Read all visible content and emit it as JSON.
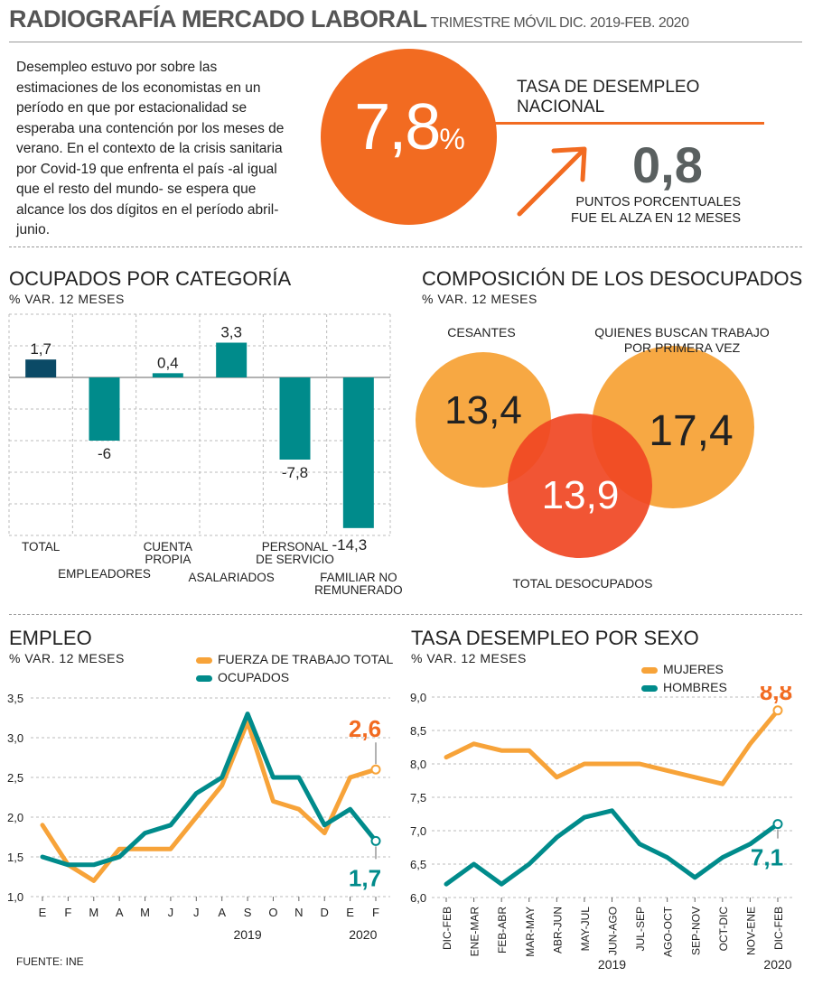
{
  "header": {
    "title": "RADIOGRAFÍA MERCADO LABORAL",
    "subtitle": "TRIMESTRE MÓVIL DIC. 2019-FEB. 2020"
  },
  "intro": {
    "text": "Desempleo estuvo por sobre las estimaciones de los economistas en un período en que  por estacionalidad se esperaba una contención por los meses de verano. En el contexto de la crisis sanitaria por Covid-19 que enfrenta el país -al igual que el resto del mundo- se espera que alcance los dos dígitos en el período abril-junio."
  },
  "rate": {
    "value": "7,8",
    "unit": "%",
    "label": "TASA DE DESEMPLEO NACIONAL",
    "change_value": "0,8",
    "change_label_1": "PUNTOS PORCENTUALES",
    "change_label_2": "FUE EL ALZA EN 12 MESES"
  },
  "colors": {
    "orange": "#f26b21",
    "light_orange": "#f7a339",
    "teal": "#008b8b",
    "navy": "#0b4a66",
    "red": "#f04723"
  },
  "ocupados": {
    "title": "OCUPADOS POR CATEGORÍA",
    "subtitle": "% VAR. 12 MESES",
    "chart_data": {
      "type": "bar",
      "categories": [
        "TOTAL",
        "EMPLEADORES",
        "CUENTA PROPIA",
        "ASALARIADOS",
        "PERSONAL DE SERVICIO",
        "FAMILIAR NO REMUNERADO"
      ],
      "values": [
        1.7,
        -6,
        0.4,
        3.3,
        -7.8,
        -14.3
      ],
      "value_labels": [
        "1,7",
        "-6",
        "0,4",
        "3,3",
        "-7,8",
        "-14,3"
      ],
      "ylim": [
        -15,
        6
      ],
      "grid": true
    }
  },
  "desocupados": {
    "title": "COMPOSICIÓN DE LOS DESOCUPADOS",
    "subtitle": "% VAR. 12 MESES",
    "cesantes_label": "CESANTES",
    "cesantes_value": "13,4",
    "primera_label_1": "QUIENES BUSCAN TRABAJO",
    "primera_label_2": "POR PRIMERA VEZ",
    "primera_value": "17,4",
    "total_label": "TOTAL DESOCUPADOS",
    "total_value": "13,9"
  },
  "empleo": {
    "title": "EMPLEO",
    "subtitle": "% VAR. 12 MESES",
    "legend_fuerza": "FUERZA DE TRABAJO TOTAL",
    "legend_ocupados": "OCUPADOS",
    "end_label_fuerza": "2,6",
    "end_label_ocupados": "1,7",
    "year_2019": "2019",
    "year_2020": "2020",
    "chart_data": {
      "type": "line",
      "x": [
        "E",
        "F",
        "M",
        "A",
        "M",
        "J",
        "J",
        "A",
        "S",
        "O",
        "N",
        "D",
        "E",
        "F"
      ],
      "series": [
        {
          "name": "FUERZA DE TRABAJO TOTAL",
          "values": [
            1.9,
            1.4,
            1.2,
            1.6,
            1.6,
            1.6,
            2.0,
            2.4,
            3.2,
            2.2,
            2.1,
            1.8,
            2.5,
            2.6
          ]
        },
        {
          "name": "OCUPADOS",
          "values": [
            1.5,
            1.4,
            1.4,
            1.5,
            1.8,
            1.9,
            2.3,
            2.5,
            3.3,
            2.5,
            2.5,
            1.9,
            2.1,
            1.7
          ]
        }
      ],
      "yticks": [
        "1,0",
        "1,5",
        "2,0",
        "2,5",
        "3,0",
        "3,5"
      ],
      "ylim": [
        1.0,
        3.5
      ],
      "grid": true
    }
  },
  "sexo": {
    "title": "TASA DESEMPLEO POR SEXO",
    "subtitle": "% VAR. 12 MESES",
    "legend_mujeres": "MUJERES",
    "legend_hombres": "HOMBRES",
    "end_label_mujeres": "8,8",
    "end_label_hombres": "7,1",
    "year_2019": "2019",
    "year_2020": "2020",
    "chart_data": {
      "type": "line",
      "x": [
        "DIC-FEB",
        "ENE-MAR",
        "FEB-ABR",
        "MAR-MAY",
        "ABR-JUN",
        "MAY-JUL",
        "JUN-AGO",
        "JUL-SEP",
        "AGO-OCT",
        "SEP-NOV",
        "OCT-DIC",
        "NOV-ENE",
        "DIC-FEB"
      ],
      "series": [
        {
          "name": "MUJERES",
          "values": [
            8.1,
            8.3,
            8.2,
            8.2,
            7.8,
            8.0,
            8.0,
            8.0,
            7.9,
            7.8,
            7.7,
            8.3,
            8.8
          ]
        },
        {
          "name": "HOMBRES",
          "values": [
            6.2,
            6.5,
            6.2,
            6.5,
            6.9,
            7.2,
            7.3,
            6.8,
            6.6,
            6.3,
            6.6,
            6.8,
            7.1
          ]
        }
      ],
      "yticks": [
        "6,0",
        "6,5",
        "7,0",
        "7,5",
        "8,0",
        "8,5",
        "9,0"
      ],
      "ylim": [
        6.0,
        9.0
      ],
      "grid": true
    }
  },
  "fuente": "FUENTE: INE"
}
